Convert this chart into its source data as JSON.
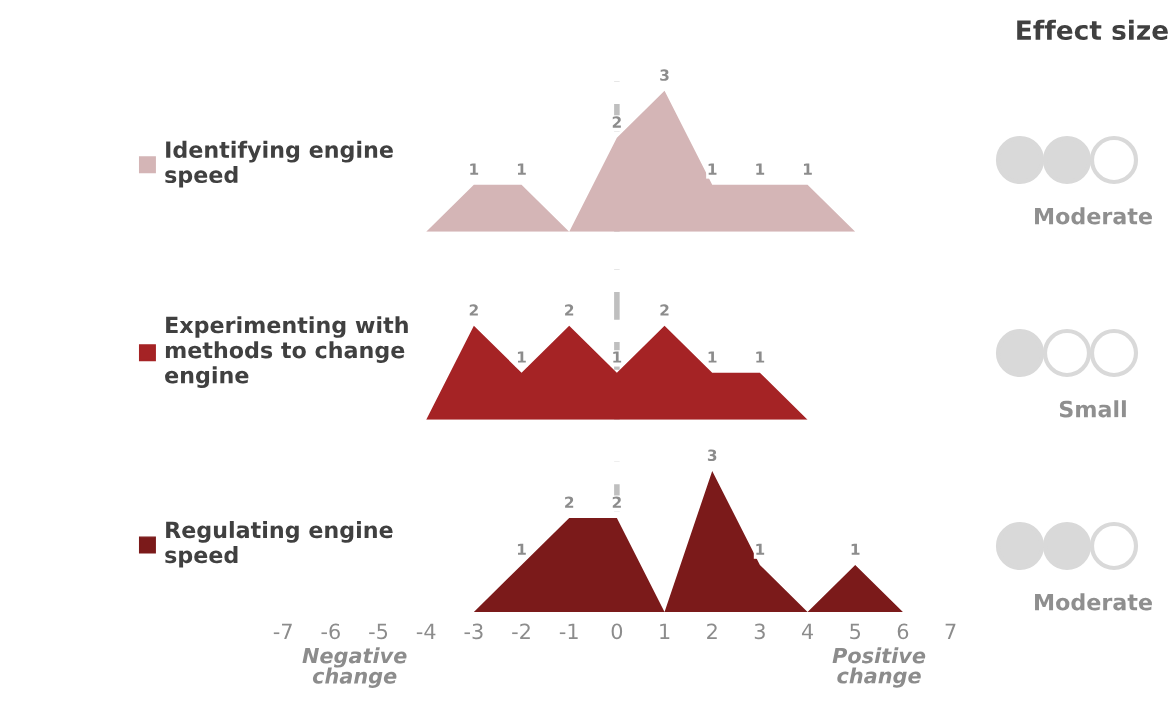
{
  "chart_data": [
    {
      "type": "area",
      "xlim": [
        -7,
        7
      ],
      "ylim": [
        0,
        3.2
      ],
      "xticks": [
        -7,
        -6,
        -5,
        -4,
        -3,
        -2,
        -1,
        0,
        1,
        2,
        3,
        4,
        5,
        6,
        7
      ],
      "tick_labels": false,
      "legend": "left",
      "grid": false,
      "ref_lines": [
        {
          "axis": "x",
          "value": 0,
          "color": "#bfbfbf",
          "line_style": "dashed"
        }
      ],
      "series": [
        {
          "name": "Identifying engine speed",
          "color": "#d4b5b6",
          "x": [
            -4,
            -3,
            -2,
            -1,
            0,
            1,
            2,
            3,
            4,
            5
          ],
          "values": [
            0,
            1,
            1,
            0,
            2,
            3,
            1,
            1,
            1,
            0
          ],
          "value_labels": [
            null,
            "1",
            "1",
            null,
            "2",
            "3",
            "1",
            "1",
            "1",
            null
          ]
        }
      ]
    },
    {
      "type": "area",
      "xlim": [
        -7,
        7
      ],
      "ylim": [
        0,
        3.2
      ],
      "xticks": [
        -7,
        -6,
        -5,
        -4,
        -3,
        -2,
        -1,
        0,
        1,
        2,
        3,
        4,
        5,
        6,
        7
      ],
      "tick_labels": false,
      "legend": "left",
      "grid": false,
      "ref_lines": [
        {
          "axis": "x",
          "value": 0,
          "color": "#bfbfbf",
          "line_style": "dashed"
        }
      ],
      "series": [
        {
          "name": "Experimenting with methods to change engine",
          "color": "#a52325",
          "x": [
            -4,
            -3,
            -2,
            -1,
            0,
            1,
            2,
            3,
            4
          ],
          "values": [
            0,
            2,
            1,
            2,
            1,
            2,
            1,
            1,
            0
          ],
          "value_labels": [
            null,
            "2",
            "1",
            "2",
            "1",
            "2",
            "1",
            "1",
            null
          ]
        }
      ]
    },
    {
      "type": "area",
      "xlim": [
        -7,
        7
      ],
      "ylim": [
        0,
        3.2
      ],
      "xticks": [
        -7,
        -6,
        -5,
        -4,
        -3,
        -2,
        -1,
        0,
        1,
        2,
        3,
        4,
        5,
        6,
        7
      ],
      "tick_labels": "x",
      "legend": "left",
      "grid": false,
      "ref_lines": [
        {
          "axis": "x",
          "value": 0,
          "color": "#bfbfbf",
          "line_style": "dashed"
        }
      ],
      "annotations": [
        "Negative change",
        "Positive change"
      ],
      "series": [
        {
          "name": "Regulating engine speed",
          "color": "#7b1a1a",
          "x": [
            -3,
            -2,
            -1,
            0,
            1,
            2,
            3,
            4,
            5,
            6
          ],
          "values": [
            0,
            1,
            2,
            2,
            0,
            3,
            1,
            0,
            1,
            0
          ],
          "value_labels": [
            null,
            "1",
            "2",
            "2",
            null,
            "3",
            "1",
            null,
            "1",
            null
          ]
        }
      ]
    },
    {
      "type": "other",
      "title": "Effect size",
      "annotations": [
        "Moderate",
        "Small",
        "Moderate"
      ]
    }
  ]
}
